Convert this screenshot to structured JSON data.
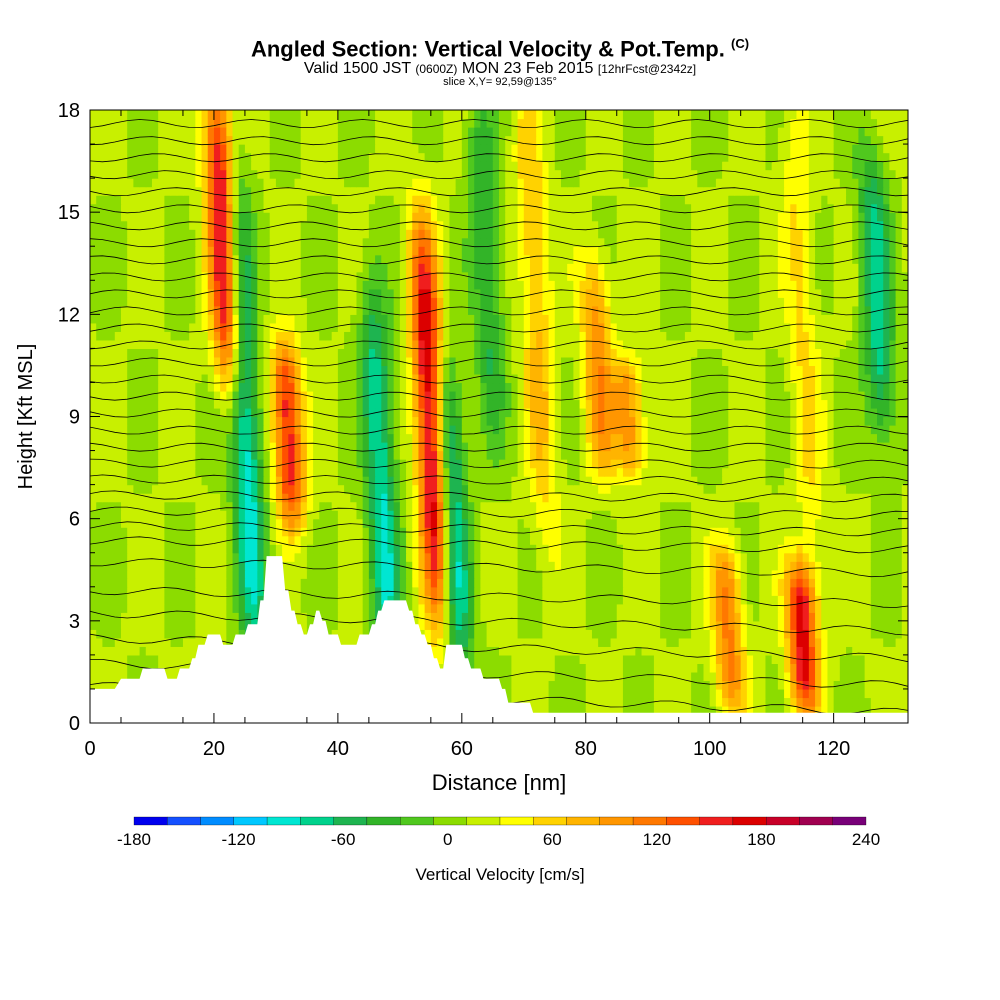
{
  "header": {
    "title": "Angled Section: Vertical Velocity & Pot.Temp.",
    "title_units": "(C)",
    "subtitle_a": "Valid 1500 JST",
    "subtitle_b": "(0600Z)",
    "subtitle_c": "MON 23 Feb 2015",
    "subtitle_d": "[12hrFcst@2342z]",
    "slice": "slice X,Y= 92,59@135°"
  },
  "chart_data": {
    "type": "heatmap",
    "title": "Angled Section: Vertical Velocity & Pot.Temp.",
    "xlabel": "Distance [nm]",
    "ylabel": "Height [Kft MSL]",
    "xlim": [
      0,
      132
    ],
    "ylim": [
      0,
      18
    ],
    "x_ticks": [
      0,
      20,
      40,
      60,
      80,
      100,
      120
    ],
    "y_ticks": [
      0,
      3,
      6,
      9,
      12,
      15,
      18
    ],
    "colorbar": {
      "label": "Vertical Velocity [cm/s]",
      "range": [
        -180,
        240
      ],
      "tick_values": [
        -180,
        -120,
        -60,
        0,
        60,
        120,
        180,
        240
      ],
      "tick_labels": [
        "-180",
        "-120",
        "-60",
        "0",
        "60",
        "120",
        "180",
        "240"
      ],
      "colors": [
        "#0000ee",
        "#1450ff",
        "#008cff",
        "#00c8ff",
        "#00e6d2",
        "#00d28c",
        "#1eb450",
        "#32b428",
        "#50c81e",
        "#8cdc00",
        "#c8f000",
        "#ffff00",
        "#ffd200",
        "#ffb400",
        "#ff9600",
        "#ff7800",
        "#ff5000",
        "#f01e1e",
        "#dc0000",
        "#c80028",
        "#a00050",
        "#780078"
      ]
    },
    "updrafts": [
      {
        "x": 21.5,
        "y_bottom": 10.5,
        "y_top": 18,
        "peak": 180
      },
      {
        "x": 32,
        "y_bottom": 6.5,
        "y_top": 10.5,
        "peak": 150
      },
      {
        "x": 55,
        "y_bottom": 3.5,
        "y_top": 14,
        "peak": 180
      },
      {
        "x": 72,
        "y_bottom": 6,
        "y_top": 18,
        "peak": 60
      },
      {
        "x": 82,
        "y_bottom": 8,
        "y_top": 13,
        "peak": 90
      },
      {
        "x": 87,
        "y_bottom": 8,
        "y_top": 10,
        "peak": 90
      },
      {
        "x": 103,
        "y_bottom": 1,
        "y_top": 4.5,
        "peak": 100
      },
      {
        "x": 115,
        "y_bottom": 1,
        "y_top": 4,
        "peak": 160
      },
      {
        "x": 115,
        "y_bottom": 5,
        "y_top": 18,
        "peak": 40
      }
    ],
    "downdrafts": [
      {
        "x": 25,
        "y_bottom": 2,
        "y_top": 16,
        "peak": -110
      },
      {
        "x": 47,
        "y_bottom": 2,
        "y_top": 12,
        "peak": -100
      },
      {
        "x": 58.5,
        "y_bottom": 2,
        "y_top": 10,
        "peak": -110
      },
      {
        "x": 64,
        "y_bottom": 9,
        "y_top": 18,
        "peak": -60
      },
      {
        "x": 127,
        "y_bottom": 9,
        "y_top": 16,
        "peak": -90
      }
    ],
    "terrain_height_kft": [
      [
        0,
        1.0
      ],
      [
        4,
        1.0
      ],
      [
        5,
        1.3
      ],
      [
        8,
        1.3
      ],
      [
        8.5,
        1.6
      ],
      [
        12,
        1.6
      ],
      [
        12.5,
        1.3
      ],
      [
        14,
        1.3
      ],
      [
        14.5,
        1.6
      ],
      [
        16,
        1.6
      ],
      [
        16.5,
        1.9
      ],
      [
        17,
        1.9
      ],
      [
        17.5,
        2.3
      ],
      [
        18.5,
        2.3
      ],
      [
        19,
        2.6
      ],
      [
        21,
        2.6
      ],
      [
        21.5,
        2.3
      ],
      [
        23,
        2.3
      ],
      [
        23.5,
        2.6
      ],
      [
        25,
        2.6
      ],
      [
        25.5,
        2.9
      ],
      [
        27,
        2.9
      ],
      [
        27.5,
        3.6
      ],
      [
        28,
        3.6
      ],
      [
        28.5,
        4.9
      ],
      [
        31,
        4.9
      ],
      [
        31.5,
        3.9
      ],
      [
        32,
        3.9
      ],
      [
        32.5,
        3.3
      ],
      [
        33,
        3.3
      ],
      [
        33.5,
        2.9
      ],
      [
        34,
        2.9
      ],
      [
        34.5,
        2.6
      ],
      [
        35,
        2.6
      ],
      [
        35.5,
        2.9
      ],
      [
        36,
        2.9
      ],
      [
        36.5,
        3.3
      ],
      [
        37,
        3.3
      ],
      [
        37.5,
        3.0
      ],
      [
        38,
        3.0
      ],
      [
        38.5,
        2.6
      ],
      [
        40,
        2.6
      ],
      [
        40.5,
        2.3
      ],
      [
        43,
        2.3
      ],
      [
        43.5,
        2.6
      ],
      [
        45,
        2.6
      ],
      [
        45.5,
        2.9
      ],
      [
        46,
        2.9
      ],
      [
        46.5,
        3.3
      ],
      [
        47,
        3.3
      ],
      [
        47.5,
        3.6
      ],
      [
        51,
        3.6
      ],
      [
        51.5,
        3.3
      ],
      [
        52,
        3.3
      ],
      [
        52.5,
        2.9
      ],
      [
        53,
        2.9
      ],
      [
        53.5,
        2.6
      ],
      [
        54,
        2.6
      ],
      [
        54.5,
        2.3
      ],
      [
        55,
        2.3
      ],
      [
        55.5,
        1.9
      ],
      [
        56,
        1.9
      ],
      [
        56.5,
        1.6
      ],
      [
        57,
        1.6
      ],
      [
        57.5,
        2.3
      ],
      [
        60,
        2.3
      ],
      [
        60.5,
        1.9
      ],
      [
        61,
        1.9
      ],
      [
        61.5,
        1.6
      ],
      [
        63,
        1.6
      ],
      [
        63.5,
        1.3
      ],
      [
        66,
        1.3
      ],
      [
        66.5,
        1.0
      ],
      [
        67,
        1.0
      ],
      [
        67.5,
        0.6
      ],
      [
        71,
        0.6
      ],
      [
        71.5,
        0.3
      ],
      [
        132,
        0.3
      ]
    ],
    "theta_contours_series": [
      {
        "base_height_kft": 0.3,
        "slope": 0.12
      },
      {
        "base_height_kft": 1.1,
        "slope": 0.1
      },
      {
        "base_height_kft": 1.9,
        "slope": 0.09
      },
      {
        "base_height_kft": 2.7,
        "slope": 0.08
      },
      {
        "base_height_kft": 3.5,
        "slope": 0.06
      },
      {
        "base_height_kft": 4.4,
        "slope": 0.05
      },
      {
        "base_height_kft": 5.1,
        "slope": 0.04
      },
      {
        "base_height_kft": 5.6,
        "slope": 0.03
      },
      {
        "base_height_kft": 6.1,
        "slope": 0.02
      },
      {
        "base_height_kft": 6.6,
        "slope": 0.015
      },
      {
        "base_height_kft": 7.1,
        "slope": 0.01
      },
      {
        "base_height_kft": 7.6,
        "slope": 0.005
      },
      {
        "base_height_kft": 8.1,
        "slope": 0.0
      },
      {
        "base_height_kft": 8.6,
        "slope": 0.0
      },
      {
        "base_height_kft": 9.1,
        "slope": 0.0
      },
      {
        "base_height_kft": 9.6,
        "slope": 0.0
      },
      {
        "base_height_kft": 10.1,
        "slope": 0.0
      },
      {
        "base_height_kft": 10.6,
        "slope": 0.0
      },
      {
        "base_height_kft": 11.1,
        "slope": 0.0
      },
      {
        "base_height_kft": 11.6,
        "slope": 0.0
      },
      {
        "base_height_kft": 12.1,
        "slope": 0.0
      },
      {
        "base_height_kft": 12.6,
        "slope": 0.0
      },
      {
        "base_height_kft": 13.1,
        "slope": 0.0
      },
      {
        "base_height_kft": 13.6,
        "slope": 0.0
      },
      {
        "base_height_kft": 14.1,
        "slope": 0.0
      },
      {
        "base_height_kft": 14.6,
        "slope": 0.0
      },
      {
        "base_height_kft": 15.1,
        "slope": 0.0
      },
      {
        "base_height_kft": 15.6,
        "slope": 0.0
      },
      {
        "base_height_kft": 16.1,
        "slope": 0.0
      },
      {
        "base_height_kft": 16.6,
        "slope": 0.0
      },
      {
        "base_height_kft": 17.1,
        "slope": 0.0
      },
      {
        "base_height_kft": 17.6,
        "slope": 0.0
      }
    ]
  }
}
